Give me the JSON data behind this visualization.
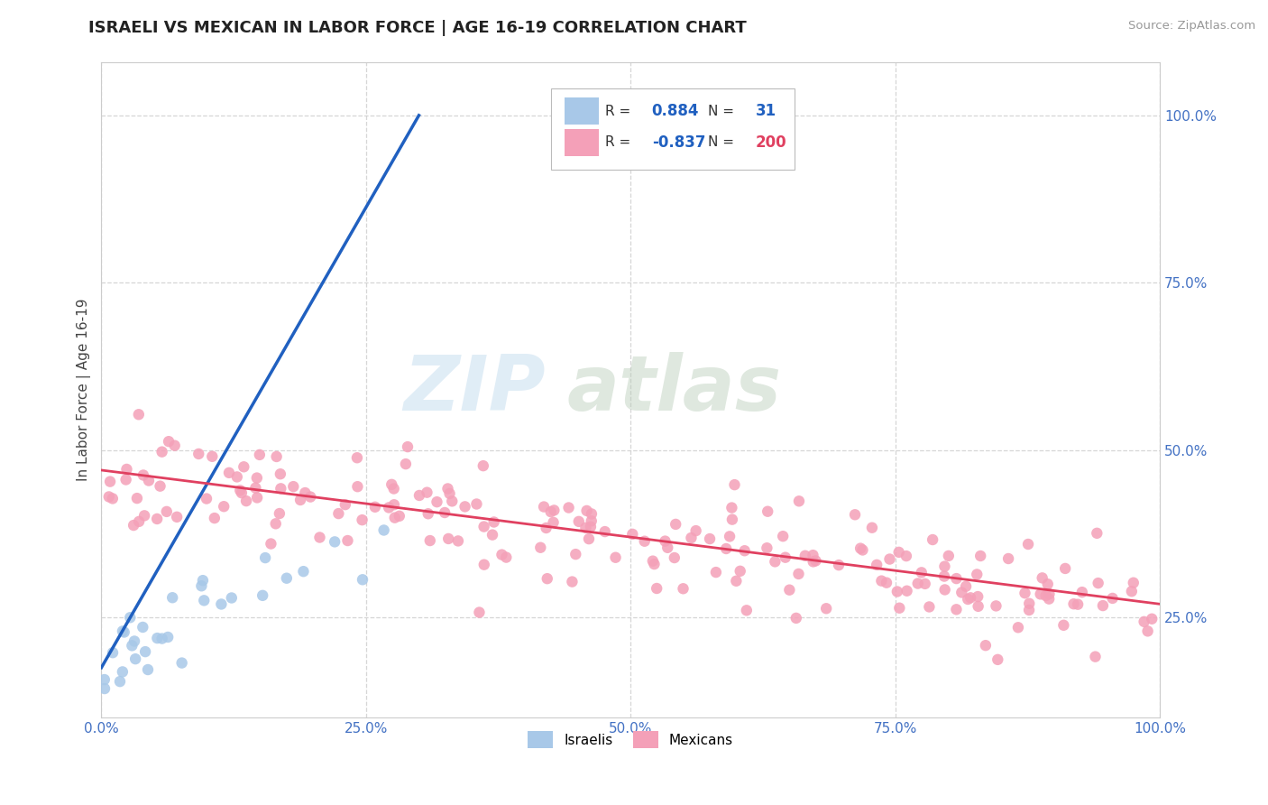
{
  "title": "ISRAELI VS MEXICAN IN LABOR FORCE | AGE 16-19 CORRELATION CHART",
  "source": "Source: ZipAtlas.com",
  "ylabel": "In Labor Force | Age 16-19",
  "xlim": [
    0.0,
    1.0
  ],
  "ylim": [
    0.1,
    1.08
  ],
  "xticks": [
    0.0,
    0.25,
    0.5,
    0.75,
    1.0
  ],
  "xtick_labels": [
    "0.0%",
    "25.0%",
    "50.0%",
    "75.0%",
    "100.0%"
  ],
  "yticks": [
    0.25,
    0.5,
    0.75,
    1.0
  ],
  "ytick_labels": [
    "25.0%",
    "50.0%",
    "75.0%",
    "100.0%"
  ],
  "R_israeli": 0.884,
  "N_israeli": 31,
  "R_mexican": -0.837,
  "N_mexican": 200,
  "israeli_color": "#a8c8e8",
  "mexican_color": "#f4a0b8",
  "israeli_line_color": "#2060c0",
  "mexican_line_color": "#e04060",
  "background_color": "#ffffff",
  "grid_color": "#cccccc",
  "tick_color": "#4472C4",
  "title_fontsize": 13,
  "axis_label_fontsize": 11,
  "tick_fontsize": 11
}
